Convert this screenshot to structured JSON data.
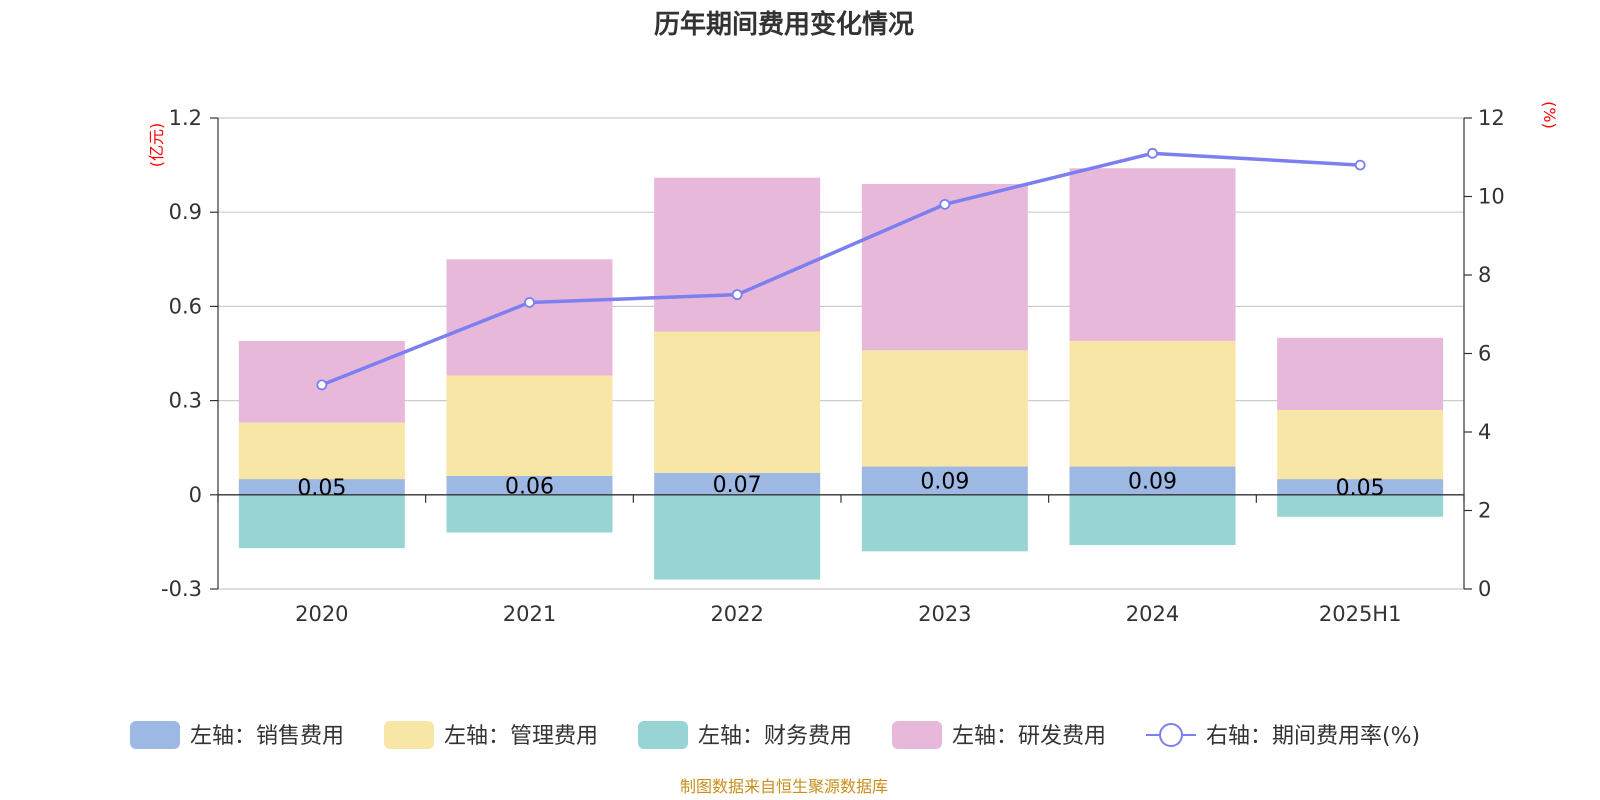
{
  "chart_data": {
    "type": "bar",
    "title": "历年期间费用变化情况",
    "categories": [
      "2020",
      "2021",
      "2022",
      "2023",
      "2024",
      "2025H1"
    ],
    "left_axis": {
      "unit": "(亿元)",
      "ylim": [
        -0.3,
        1.2
      ],
      "ticks": [
        "1.2",
        "0.9",
        "0.6",
        "0.3",
        "0",
        "-0.3"
      ],
      "tick_values": [
        1.2,
        0.9,
        0.6,
        0.3,
        0,
        -0.3
      ]
    },
    "right_axis": {
      "unit": "(%)",
      "ylim": [
        0,
        12
      ],
      "ticks": [
        "12",
        "10",
        "8",
        "6",
        "4",
        "2",
        "0"
      ],
      "tick_values": [
        12,
        10,
        8,
        6,
        4,
        2,
        0
      ]
    },
    "series": [
      {
        "name": "左轴：销售费用",
        "color": "#9db8e2",
        "values": [
          0.05,
          0.06,
          0.07,
          0.09,
          0.09,
          0.05
        ],
        "labels": [
          "0.05",
          "0.06",
          "0.07",
          "0.09",
          "0.09",
          "0.05"
        ]
      },
      {
        "name": "左轴：管理费用",
        "color": "#f8e6a6",
        "values": [
          0.18,
          0.32,
          0.45,
          0.37,
          0.4,
          0.22
        ]
      },
      {
        "name": "左轴：财务费用",
        "color": "#98d4d4",
        "values": [
          -0.17,
          -0.12,
          -0.27,
          -0.18,
          -0.16,
          -0.07
        ]
      },
      {
        "name": "左轴：研发费用",
        "color": "#e8b8da",
        "values": [
          0.26,
          0.37,
          0.49,
          0.53,
          0.55,
          0.23
        ]
      }
    ],
    "line": {
      "name": "右轴：期间费用率(%)",
      "color": "#7b7ff0",
      "values": [
        5.2,
        7.3,
        7.5,
        9.8,
        11.1,
        10.8
      ]
    },
    "grid": true,
    "legend_position": "bottom"
  },
  "source_note": "制图数据来自恒生聚源数据库"
}
